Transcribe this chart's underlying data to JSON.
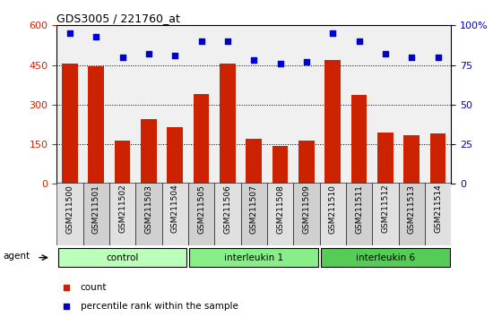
{
  "title": "GDS3005 / 221760_at",
  "samples": [
    "GSM211500",
    "GSM211501",
    "GSM211502",
    "GSM211503",
    "GSM211504",
    "GSM211505",
    "GSM211506",
    "GSM211507",
    "GSM211508",
    "GSM211509",
    "GSM211510",
    "GSM211511",
    "GSM211512",
    "GSM211513",
    "GSM211514"
  ],
  "counts": [
    455,
    445,
    165,
    245,
    215,
    340,
    455,
    170,
    145,
    165,
    470,
    335,
    195,
    185,
    190
  ],
  "percentiles": [
    95,
    93,
    80,
    82,
    81,
    90,
    90,
    78,
    76,
    77,
    95,
    90,
    82,
    80,
    80
  ],
  "groups": [
    {
      "label": "control",
      "start": 0,
      "end": 5,
      "color": "#BBFFBB"
    },
    {
      "label": "interleukin 1",
      "start": 5,
      "end": 10,
      "color": "#88EE88"
    },
    {
      "label": "interleukin 6",
      "start": 10,
      "end": 15,
      "color": "#55CC55"
    }
  ],
  "bar_color": "#CC2200",
  "dot_color": "#0000CC",
  "left_ylim": [
    0,
    600
  ],
  "left_yticks": [
    0,
    150,
    300,
    450,
    600
  ],
  "left_ylabel_color": "#CC2200",
  "right_ylim": [
    0,
    100
  ],
  "right_yticks": [
    0,
    25,
    50,
    75,
    100
  ],
  "right_ylabel_color": "#0000CC",
  "bg_color": "#F0F0F0",
  "legend_count_label": "count",
  "legend_pct_label": "percentile rank within the sample",
  "agent_label": "agent"
}
